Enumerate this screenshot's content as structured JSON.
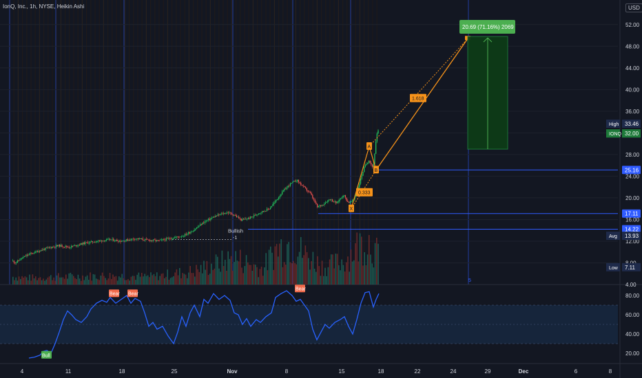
{
  "header": {
    "title": "IonQ, Inc., 1h, NYSE, Heikin Ashi",
    "currency": "USD"
  },
  "colors": {
    "bg": "#131722",
    "up": "#26a69a",
    "down": "#ef5350",
    "rsi": "#2962ff",
    "level": "#2f5bff",
    "fib": "#f7931a",
    "target": "#4caf50"
  },
  "chart_data": [
    {
      "type": "candlestick",
      "title": "IonQ, Inc., 1h, NYSE, Heikin Ashi",
      "y_ticks": [
        4.0,
        8.0,
        12.0,
        16.0,
        20.0,
        24.0,
        28.0,
        32.0,
        36.0,
        40.0,
        44.0,
        48.0,
        52.0
      ],
      "y_tick_labels": [
        "4.00",
        "8.00",
        "12.00",
        "16.00",
        "20.00",
        "24.00",
        "28.00",
        "32.00",
        "36.00",
        "40.00",
        "44.00",
        "48.00",
        "52.00"
      ],
      "ylim": [
        4,
        54
      ],
      "x_ticks": [
        "4",
        "11",
        "18",
        "25",
        "Nov",
        "8",
        "15",
        "18",
        "22",
        "24",
        "29",
        "Dec",
        "6",
        "8"
      ],
      "price_path": [
        [
          0,
          10.5
        ],
        [
          8,
          8.3
        ],
        [
          15,
          8.6
        ],
        [
          22,
          8.0
        ],
        [
          30,
          8.8
        ],
        [
          40,
          9.5
        ],
        [
          55,
          10.2
        ],
        [
          70,
          10.8
        ],
        [
          85,
          11.2
        ],
        [
          100,
          10.9
        ],
        [
          120,
          11.6
        ],
        [
          140,
          12.0
        ],
        [
          160,
          12.3
        ],
        [
          175,
          12.0
        ],
        [
          195,
          12.5
        ],
        [
          215,
          12.2
        ],
        [
          230,
          12.1
        ],
        [
          250,
          12.6
        ],
        [
          265,
          13.0
        ],
        [
          280,
          14.0
        ],
        [
          295,
          15.5
        ],
        [
          310,
          16.5
        ],
        [
          320,
          17.0
        ],
        [
          330,
          17.3
        ],
        [
          340,
          16.8
        ],
        [
          350,
          15.9
        ],
        [
          362,
          16.3
        ],
        [
          375,
          17.2
        ],
        [
          390,
          18.0
        ],
        [
          400,
          19.5
        ],
        [
          410,
          21.2
        ],
        [
          420,
          22.5
        ],
        [
          430,
          23.3
        ],
        [
          440,
          22.0
        ],
        [
          450,
          20.8
        ],
        [
          460,
          18.3
        ],
        [
          468,
          18.8
        ],
        [
          478,
          19.8
        ],
        [
          488,
          19.0
        ],
        [
          498,
          20.6
        ],
        [
          505,
          19.1
        ],
        [
          512,
          19.5
        ],
        [
          520,
          22.2
        ],
        [
          528,
          25.6
        ],
        [
          535,
          27.0
        ],
        [
          541,
          25.5
        ],
        [
          546,
          31.5
        ],
        [
          550,
          33.0
        ]
      ],
      "last_up_bar_index": 465,
      "volume_path": [
        [
          0,
          0.2
        ],
        [
          40,
          0.15
        ],
        [
          100,
          0.18
        ],
        [
          160,
          0.2
        ],
        [
          220,
          0.18
        ],
        [
          280,
          0.3
        ],
        [
          340,
          0.6
        ],
        [
          380,
          0.35
        ],
        [
          400,
          0.8
        ],
        [
          420,
          0.95
        ],
        [
          440,
          0.7
        ],
        [
          470,
          0.4
        ],
        [
          500,
          0.55
        ],
        [
          520,
          0.9
        ],
        [
          535,
          1.0
        ],
        [
          550,
          0.6
        ]
      ],
      "levels": [
        {
          "value": 25.16,
          "label": "25.16"
        },
        {
          "value": 17.11,
          "label": "17.11"
        },
        {
          "value": 14.22,
          "label": "14.22"
        }
      ],
      "side_labels": [
        {
          "name": "High",
          "value": "33.46"
        },
        {
          "name": "IONQ",
          "value": "32.00"
        },
        {
          "name": "Avg",
          "value": "13.93"
        },
        {
          "name": "Low",
          "value": "7.11"
        }
      ],
      "pattern": {
        "points": [
          {
            "label": "X",
            "x": 510,
            "y": 18.0
          },
          {
            "label": "A",
            "x": 536,
            "y": 29.5
          },
          {
            "label": "B",
            "x": 546,
            "y": 25.16
          }
        ],
        "ratio_lower": "0.333",
        "ratio_upper": "1.618",
        "target_y": 49.4
      },
      "target_box": {
        "label": "20.69 (71.16%) 2069",
        "top": 49.8,
        "bottom": 29.0,
        "x0": 679,
        "x1": 737
      },
      "annotations": [
        {
          "text": "Bullish",
          "sub": "-1"
        }
      ],
      "vline_labels": [
        "5"
      ]
    },
    {
      "type": "line",
      "title": "",
      "y_ticks": [
        20.0,
        40.0,
        60.0,
        80.0
      ],
      "y_tick_labels": [
        "20.00",
        "40.00",
        "60.00",
        "80.00"
      ],
      "ylim": [
        10,
        90
      ],
      "band": [
        30,
        70
      ],
      "mid": 50,
      "series": [
        {
          "values": [
            [
              42,
              15
            ],
            [
              50,
              16
            ],
            [
              58,
              18
            ],
            [
              63,
              22
            ],
            [
              68,
              23
            ],
            [
              74,
              20
            ],
            [
              80,
              30
            ],
            [
              86,
              42
            ],
            [
              92,
              55
            ],
            [
              98,
              64
            ],
            [
              104,
              60
            ],
            [
              110,
              55
            ],
            [
              118,
              52
            ],
            [
              126,
              58
            ],
            [
              132,
              66
            ],
            [
              140,
              72
            ],
            [
              148,
              75
            ],
            [
              155,
              73
            ],
            [
              160,
              78
            ],
            [
              168,
              72
            ],
            [
              176,
              76
            ],
            [
              184,
              80
            ],
            [
              190,
              72
            ],
            [
              196,
              77
            ],
            [
              204,
              74
            ],
            [
              210,
              62
            ],
            [
              216,
              48
            ],
            [
              222,
              52
            ],
            [
              228,
              45
            ],
            [
              236,
              48
            ],
            [
              244,
              38
            ],
            [
              252,
              30
            ],
            [
              258,
              42
            ],
            [
              264,
              58
            ],
            [
              270,
              48
            ],
            [
              276,
              62
            ],
            [
              282,
              70
            ],
            [
              290,
              58
            ],
            [
              296,
              76
            ],
            [
              302,
              72
            ],
            [
              310,
              82
            ],
            [
              318,
              76
            ],
            [
              326,
              80
            ],
            [
              334,
              75
            ],
            [
              340,
              62
            ],
            [
              346,
              60
            ],
            [
              352,
              50
            ],
            [
              358,
              56
            ],
            [
              364,
              48
            ],
            [
              372,
              55
            ],
            [
              378,
              52
            ],
            [
              386,
              58
            ],
            [
              394,
              62
            ],
            [
              400,
              78
            ],
            [
              408,
              82
            ],
            [
              416,
              85
            ],
            [
              424,
              80
            ],
            [
              430,
              74
            ],
            [
              436,
              76
            ],
            [
              442,
              70
            ],
            [
              448,
              64
            ],
            [
              454,
              45
            ],
            [
              460,
              34
            ],
            [
              466,
              42
            ],
            [
              472,
              50
            ],
            [
              478,
              46
            ],
            [
              486,
              52
            ],
            [
              494,
              55
            ],
            [
              500,
              58
            ],
            [
              506,
              48
            ],
            [
              512,
              40
            ],
            [
              518,
              55
            ],
            [
              524,
              72
            ],
            [
              530,
              83
            ],
            [
              536,
              84
            ],
            [
              542,
              68
            ],
            [
              546,
              76
            ],
            [
              550,
              82
            ]
          ]
        }
      ],
      "markers": [
        {
          "text": "Bull"
        },
        {
          "text": "Bear"
        },
        {
          "text": "Bear"
        },
        {
          "text": "Bear"
        }
      ]
    }
  ]
}
